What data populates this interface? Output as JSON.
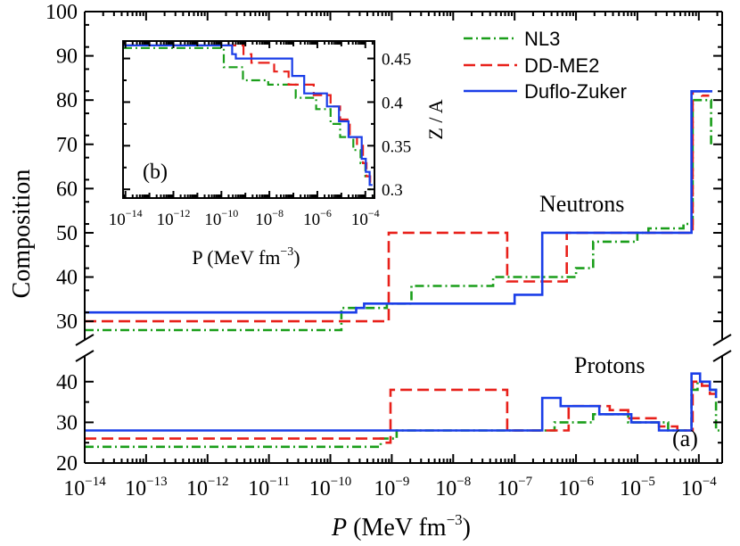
{
  "chart_data": {
    "type": "line",
    "subtype": "step",
    "main": {
      "panel_label": "(a)",
      "xlabel": "P (MeV fm^-3)",
      "xlabel_parts": {
        "var": "P",
        "unit": " (MeV fm",
        "exp": "−3",
        "close": ")"
      },
      "ylabel": "Composition",
      "x_log": true,
      "xlim_exp": [
        -14,
        -3.62
      ],
      "x_tick_exps": [
        -14,
        -13,
        -12,
        -11,
        -10,
        -9,
        -8,
        -7,
        -6,
        -5,
        -4
      ],
      "x_tick_base": "10",
      "upper": {
        "name": "Neutrons",
        "ylim": [
          27,
          100
        ],
        "yticks": [
          30,
          40,
          50,
          60,
          70,
          80,
          90,
          100
        ],
        "yticklabels": [
          "30",
          "40",
          "50",
          "60",
          "70",
          "80",
          "90",
          "100"
        ]
      },
      "lower": {
        "name": "Protons",
        "ylim": [
          20,
          45
        ],
        "yticks": [
          20,
          30,
          40
        ],
        "yticklabels": [
          "20",
          "30",
          "40"
        ]
      },
      "legend": [
        "NL3",
        "DD-ME2",
        "Duflo-Zuker"
      ],
      "series": [
        {
          "name": "NL3",
          "color": "#1a9e1a",
          "style": "dashdot",
          "neutrons": [
            [
              -14,
              28
            ],
            [
              -9.82,
              28
            ],
            [
              -9.82,
              33
            ],
            [
              -9.08,
              33
            ],
            [
              -9.08,
              34
            ],
            [
              -8.68,
              34
            ],
            [
              -8.68,
              38
            ],
            [
              -7.35,
              38
            ],
            [
              -7.35,
              40
            ],
            [
              -6.0,
              40
            ],
            [
              -6.0,
              42
            ],
            [
              -5.72,
              42
            ],
            [
              -5.72,
              48
            ],
            [
              -5.0,
              48
            ],
            [
              -5.0,
              50
            ],
            [
              -4.82,
              50
            ],
            [
              -4.82,
              51
            ],
            [
              -4.25,
              51
            ],
            [
              -4.25,
              52
            ],
            [
              -4.1,
              52
            ],
            [
              -4.1,
              80
            ],
            [
              -3.8,
              80
            ],
            [
              -3.8,
              70
            ]
          ],
          "protons": [
            [
              -14,
              24
            ],
            [
              -9.18,
              24
            ],
            [
              -9.18,
              26
            ],
            [
              -8.92,
              26
            ],
            [
              -8.92,
              28
            ],
            [
              -6.35,
              28
            ],
            [
              -6.35,
              30
            ],
            [
              -5.72,
              30
            ],
            [
              -5.72,
              32
            ],
            [
              -5.15,
              32
            ],
            [
              -5.15,
              30
            ],
            [
              -4.5,
              30
            ],
            [
              -4.5,
              28
            ],
            [
              -4.12,
              28
            ],
            [
              -4.12,
              38
            ],
            [
              -4.02,
              38
            ],
            [
              -4.02,
              40
            ],
            [
              -3.82,
              40
            ],
            [
              -3.82,
              38
            ],
            [
              -3.72,
              38
            ],
            [
              -3.72,
              28
            ],
            [
              -3.65,
              28
            ]
          ]
        },
        {
          "name": "DD-ME2",
          "color": "#e8201a",
          "style": "dashed",
          "neutrons": [
            [
              -14,
              30
            ],
            [
              -9.05,
              30
            ],
            [
              -9.05,
              50
            ],
            [
              -7.12,
              50
            ],
            [
              -7.12,
              39
            ],
            [
              -6.15,
              39
            ],
            [
              -6.15,
              50
            ],
            [
              -4.1,
              50
            ],
            [
              -4.1,
              82
            ],
            [
              -3.95,
              82
            ],
            [
              -3.95,
              81
            ],
            [
              -3.83,
              81
            ]
          ],
          "protons": [
            [
              -14,
              26
            ],
            [
              -9.12,
              26
            ],
            [
              -9.12,
              25
            ],
            [
              -9.02,
              25
            ],
            [
              -9.02,
              38
            ],
            [
              -7.12,
              38
            ],
            [
              -7.12,
              28
            ],
            [
              -6.12,
              28
            ],
            [
              -6.12,
              34
            ],
            [
              -5.45,
              34
            ],
            [
              -5.45,
              33
            ],
            [
              -5.15,
              33
            ],
            [
              -5.15,
              31
            ],
            [
              -4.65,
              31
            ],
            [
              -4.65,
              29
            ],
            [
              -4.35,
              29
            ],
            [
              -4.35,
              28
            ],
            [
              -4.1,
              28
            ],
            [
              -4.1,
              40
            ],
            [
              -3.95,
              40
            ],
            [
              -3.95,
              39
            ],
            [
              -3.82,
              39
            ],
            [
              -3.82,
              37
            ],
            [
              -3.72,
              37
            ]
          ]
        },
        {
          "name": "Duflo-Zuker",
          "color": "#1a3ee8",
          "style": "solid",
          "neutrons": [
            [
              -14,
              32
            ],
            [
              -9.58,
              32
            ],
            [
              -9.58,
              33
            ],
            [
              -9.45,
              33
            ],
            [
              -9.45,
              34
            ],
            [
              -7.0,
              34
            ],
            [
              -7.0,
              36
            ],
            [
              -6.55,
              36
            ],
            [
              -6.55,
              50
            ],
            [
              -4.12,
              50
            ],
            [
              -4.12,
              82
            ],
            [
              -3.78,
              82
            ]
          ],
          "protons": [
            [
              -14,
              28
            ],
            [
              -6.55,
              28
            ],
            [
              -6.55,
              36
            ],
            [
              -6.25,
              36
            ],
            [
              -6.25,
              34
            ],
            [
              -5.62,
              34
            ],
            [
              -5.62,
              32
            ],
            [
              -5.1,
              32
            ],
            [
              -5.1,
              30
            ],
            [
              -4.65,
              30
            ],
            [
              -4.65,
              28
            ],
            [
              -4.12,
              28
            ],
            [
              -4.12,
              42
            ],
            [
              -3.98,
              42
            ],
            [
              -3.98,
              40
            ],
            [
              -3.82,
              40
            ],
            [
              -3.82,
              38
            ],
            [
              -3.72,
              38
            ],
            [
              -3.72,
              36
            ]
          ]
        }
      ]
    },
    "inset": {
      "panel_label": "(b)",
      "xlabel": "P (MeV fm^-3)",
      "xlabel_parts": {
        "var": "P",
        "unit": " (MeV fm",
        "exp": "−3",
        "close": ")"
      },
      "ylabel": "Z / A",
      "x_log": true,
      "xlim_exp": [
        -14.1,
        -3.62
      ],
      "x_tick_exps": [
        -14,
        -12,
        -10,
        -8,
        -6,
        -4
      ],
      "x_tick_base": "10",
      "ylim": [
        0.29,
        0.47
      ],
      "yticks": [
        0.3,
        0.35,
        0.4,
        0.45
      ],
      "yticklabels": [
        "0.3",
        "0.35",
        "0.4",
        "0.45"
      ],
      "series": [
        {
          "name": "NL3",
          "color": "#1a9e1a",
          "style": "dashdot",
          "values": [
            [
              -14.1,
              0.462
            ],
            [
              -9.9,
              0.462
            ],
            [
              -9.9,
              0.44
            ],
            [
              -9.1,
              0.44
            ],
            [
              -9.1,
              0.425
            ],
            [
              -8.05,
              0.425
            ],
            [
              -8.05,
              0.42
            ],
            [
              -6.9,
              0.42
            ],
            [
              -6.9,
              0.405
            ],
            [
              -6.05,
              0.405
            ],
            [
              -6.05,
              0.392
            ],
            [
              -5.45,
              0.392
            ],
            [
              -5.45,
              0.375
            ],
            [
              -5.05,
              0.375
            ],
            [
              -5.05,
              0.36
            ],
            [
              -4.5,
              0.36
            ],
            [
              -4.5,
              0.345
            ],
            [
              -4.2,
              0.345
            ],
            [
              -4.2,
              0.33
            ],
            [
              -4.0,
              0.33
            ],
            [
              -4.0,
              0.315
            ],
            [
              -3.82,
              0.315
            ],
            [
              -3.82,
              0.3
            ],
            [
              -3.68,
              0.3
            ]
          ]
        },
        {
          "name": "DD-ME2",
          "color": "#e8201a",
          "style": "dashed",
          "values": [
            [
              -14.1,
              0.465
            ],
            [
              -9.08,
              0.465
            ],
            [
              -9.08,
              0.455
            ],
            [
              -8.75,
              0.455
            ],
            [
              -8.75,
              0.445
            ],
            [
              -7.8,
              0.445
            ],
            [
              -7.8,
              0.435
            ],
            [
              -7.2,
              0.435
            ],
            [
              -7.2,
              0.42
            ],
            [
              -6.15,
              0.42
            ],
            [
              -6.15,
              0.408
            ],
            [
              -5.45,
              0.408
            ],
            [
              -5.45,
              0.395
            ],
            [
              -5.05,
              0.395
            ],
            [
              -5.05,
              0.38
            ],
            [
              -4.65,
              0.38
            ],
            [
              -4.65,
              0.36
            ],
            [
              -4.35,
              0.36
            ],
            [
              -4.35,
              0.35
            ],
            [
              -4.1,
              0.35
            ],
            [
              -4.1,
              0.33
            ],
            [
              -3.95,
              0.33
            ],
            [
              -3.95,
              0.315
            ],
            [
              -3.8,
              0.315
            ],
            [
              -3.8,
              0.305
            ],
            [
              -3.7,
              0.305
            ]
          ]
        },
        {
          "name": "Duflo-Zuker",
          "color": "#1a3ee8",
          "style": "solid",
          "values": [
            [
              -14.1,
              0.465
            ],
            [
              -9.55,
              0.465
            ],
            [
              -9.55,
              0.455
            ],
            [
              -9.4,
              0.455
            ],
            [
              -9.4,
              0.45
            ],
            [
              -7.05,
              0.45
            ],
            [
              -7.05,
              0.43
            ],
            [
              -6.55,
              0.43
            ],
            [
              -6.55,
              0.41
            ],
            [
              -5.6,
              0.41
            ],
            [
              -5.6,
              0.395
            ],
            [
              -5.1,
              0.395
            ],
            [
              -5.1,
              0.378
            ],
            [
              -4.7,
              0.378
            ],
            [
              -4.7,
              0.36
            ],
            [
              -4.15,
              0.36
            ],
            [
              -4.15,
              0.335
            ],
            [
              -3.98,
              0.335
            ],
            [
              -3.98,
              0.32
            ],
            [
              -3.82,
              0.32
            ],
            [
              -3.82,
              0.305
            ],
            [
              -3.7,
              0.305
            ]
          ]
        }
      ]
    }
  }
}
